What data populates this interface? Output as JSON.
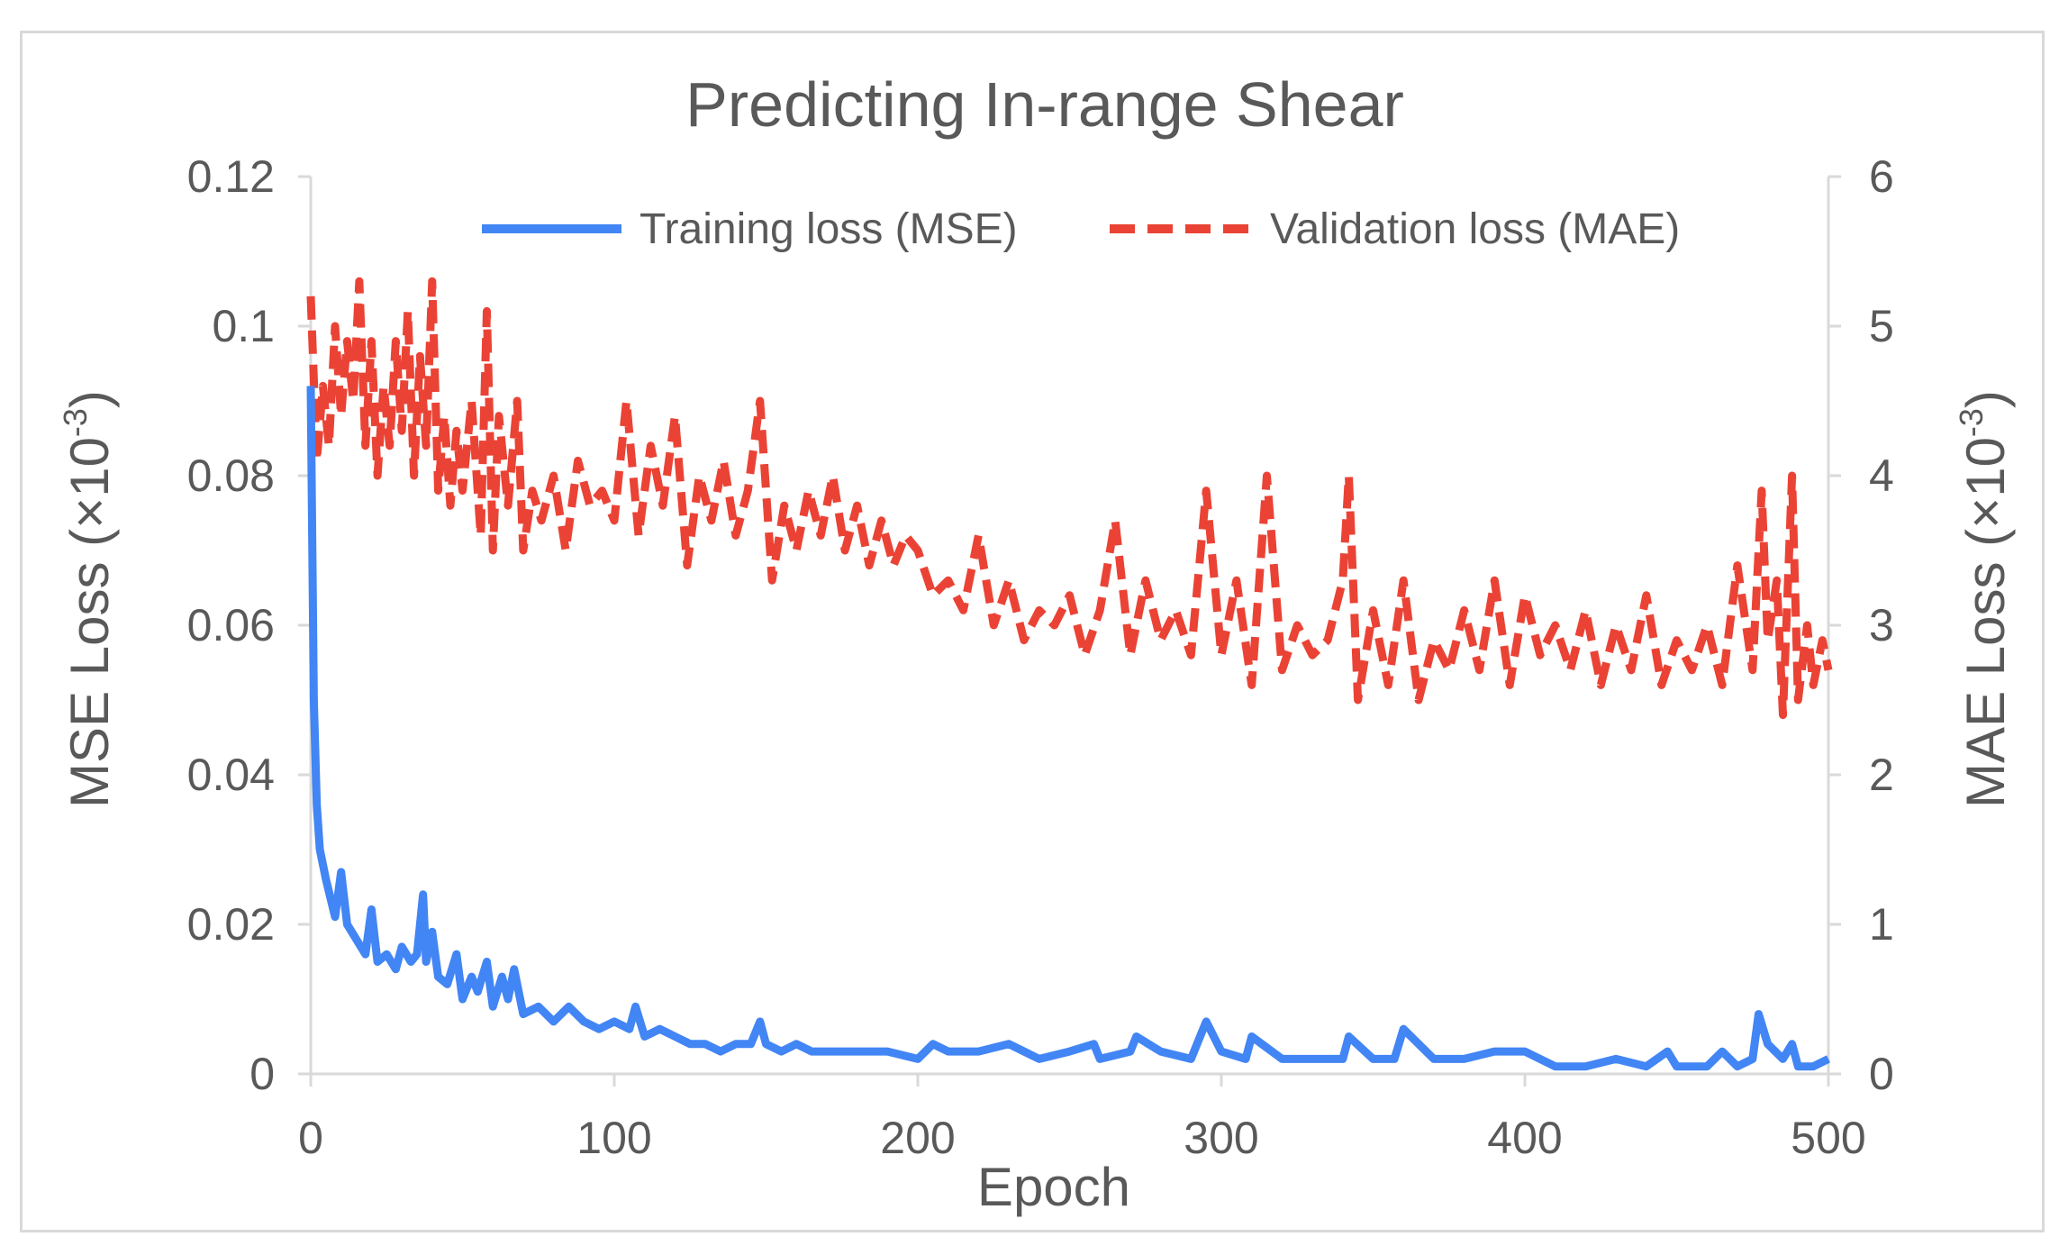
{
  "chart_data": {
    "type": "line",
    "title": "Predicting In-range Shear",
    "xlabel": "Epoch",
    "ylabel_left": "MSE Loss (×10",
    "ylabel_left_sup": "-3",
    "ylabel_left_end": ")",
    "ylabel_right": "MAE Loss (×10",
    "ylabel_right_sup": "-3",
    "ylabel_right_end": ")",
    "xlim": [
      0,
      500
    ],
    "ylim_left": [
      0,
      0.12
    ],
    "ylim_right": [
      0,
      6
    ],
    "x_ticks": [
      "0",
      "100",
      "200",
      "300",
      "400",
      "500"
    ],
    "y_left_ticks": [
      "0",
      "0.02",
      "0.04",
      "0.06",
      "0.08",
      "0.1",
      "0.12"
    ],
    "y_right_ticks": [
      "0",
      "1",
      "2",
      "3",
      "4",
      "5",
      "6"
    ],
    "grid": false,
    "legend_position": "top-center",
    "series": [
      {
        "name": "Training loss (MSE)",
        "axis": "left",
        "color": "#4285f4",
        "style": "solid",
        "x": [
          0,
          1,
          2,
          3,
          5,
          8,
          10,
          12,
          15,
          18,
          20,
          22,
          25,
          28,
          30,
          33,
          35,
          37,
          38,
          40,
          42,
          45,
          48,
          50,
          53,
          55,
          58,
          60,
          63,
          65,
          67,
          70,
          75,
          80,
          85,
          90,
          95,
          100,
          105,
          107,
          110,
          115,
          120,
          125,
          130,
          135,
          140,
          145,
          148,
          150,
          155,
          160,
          165,
          170,
          180,
          190,
          200,
          205,
          210,
          220,
          230,
          240,
          250,
          258,
          260,
          270,
          272,
          280,
          290,
          293,
          295,
          300,
          308,
          310,
          320,
          330,
          340,
          342,
          350,
          357,
          360,
          370,
          380,
          390,
          400,
          410,
          420,
          430,
          440,
          447,
          450,
          460,
          465,
          470,
          475,
          477,
          480,
          485,
          488,
          490,
          495,
          500
        ],
        "values": [
          0.092,
          0.05,
          0.036,
          0.03,
          0.026,
          0.021,
          0.027,
          0.02,
          0.018,
          0.016,
          0.022,
          0.015,
          0.016,
          0.014,
          0.017,
          0.015,
          0.016,
          0.024,
          0.015,
          0.019,
          0.013,
          0.012,
          0.016,
          0.01,
          0.013,
          0.011,
          0.015,
          0.009,
          0.013,
          0.01,
          0.014,
          0.008,
          0.009,
          0.007,
          0.009,
          0.007,
          0.006,
          0.007,
          0.006,
          0.009,
          0.005,
          0.006,
          0.005,
          0.004,
          0.004,
          0.003,
          0.004,
          0.004,
          0.007,
          0.004,
          0.003,
          0.004,
          0.003,
          0.003,
          0.003,
          0.003,
          0.002,
          0.004,
          0.003,
          0.003,
          0.004,
          0.002,
          0.003,
          0.004,
          0.002,
          0.003,
          0.005,
          0.003,
          0.002,
          0.005,
          0.007,
          0.003,
          0.002,
          0.005,
          0.002,
          0.002,
          0.002,
          0.005,
          0.002,
          0.002,
          0.006,
          0.002,
          0.002,
          0.003,
          0.003,
          0.001,
          0.001,
          0.002,
          0.001,
          0.003,
          0.001,
          0.001,
          0.003,
          0.001,
          0.002,
          0.008,
          0.004,
          0.002,
          0.004,
          0.001,
          0.001,
          0.002
        ]
      },
      {
        "name": "Validation loss (MAE)",
        "axis": "right",
        "color": "#ea4335",
        "style": "dashed",
        "x": [
          0,
          2,
          4,
          6,
          8,
          10,
          12,
          14,
          16,
          18,
          20,
          22,
          24,
          26,
          28,
          30,
          32,
          34,
          36,
          38,
          40,
          42,
          44,
          46,
          48,
          50,
          53,
          56,
          58,
          60,
          62,
          65,
          68,
          70,
          73,
          76,
          80,
          84,
          88,
          92,
          96,
          100,
          104,
          108,
          112,
          116,
          120,
          124,
          128,
          132,
          136,
          140,
          144,
          148,
          152,
          156,
          160,
          164,
          168,
          172,
          176,
          180,
          184,
          188,
          192,
          196,
          200,
          205,
          210,
          215,
          220,
          225,
          230,
          235,
          240,
          245,
          250,
          255,
          260,
          265,
          270,
          275,
          280,
          285,
          290,
          295,
          300,
          305,
          310,
          315,
          320,
          325,
          330,
          335,
          340,
          342,
          345,
          350,
          355,
          360,
          365,
          370,
          375,
          380,
          385,
          390,
          395,
          400,
          405,
          410,
          415,
          420,
          425,
          430,
          435,
          440,
          445,
          450,
          455,
          460,
          465,
          470,
          475,
          478,
          480,
          483,
          485,
          488,
          490,
          493,
          495,
          498,
          500
        ],
        "values": [
          5.2,
          4.1,
          4.6,
          4.2,
          5.0,
          4.4,
          4.9,
          4.5,
          5.3,
          4.2,
          4.9,
          4.0,
          4.6,
          4.2,
          4.9,
          4.3,
          5.1,
          4.0,
          4.8,
          4.2,
          5.3,
          3.9,
          4.4,
          3.8,
          4.3,
          3.9,
          4.5,
          3.6,
          5.1,
          3.5,
          4.4,
          3.8,
          4.5,
          3.5,
          3.9,
          3.7,
          4.0,
          3.5,
          4.1,
          3.8,
          3.9,
          3.7,
          4.5,
          3.6,
          4.2,
          3.8,
          4.4,
          3.4,
          4.0,
          3.7,
          4.1,
          3.6,
          3.9,
          4.5,
          3.3,
          3.8,
          3.5,
          3.9,
          3.6,
          4.0,
          3.5,
          3.8,
          3.4,
          3.7,
          3.4,
          3.6,
          3.5,
          3.2,
          3.3,
          3.1,
          3.6,
          3.0,
          3.3,
          2.9,
          3.1,
          3.0,
          3.2,
          2.8,
          3.1,
          3.7,
          2.8,
          3.3,
          2.9,
          3.1,
          2.8,
          3.9,
          2.8,
          3.3,
          2.6,
          4.0,
          2.7,
          3.0,
          2.8,
          2.9,
          3.3,
          4.0,
          2.5,
          3.1,
          2.6,
          3.3,
          2.5,
          2.9,
          2.7,
          3.1,
          2.7,
          3.3,
          2.6,
          3.2,
          2.8,
          3.0,
          2.7,
          3.1,
          2.6,
          3.0,
          2.7,
          3.2,
          2.6,
          2.9,
          2.7,
          3.0,
          2.6,
          3.4,
          2.7,
          3.9,
          2.9,
          3.3,
          2.4,
          4.0,
          2.5,
          3.0,
          2.6,
          2.9,
          2.7
        ]
      }
    ]
  }
}
